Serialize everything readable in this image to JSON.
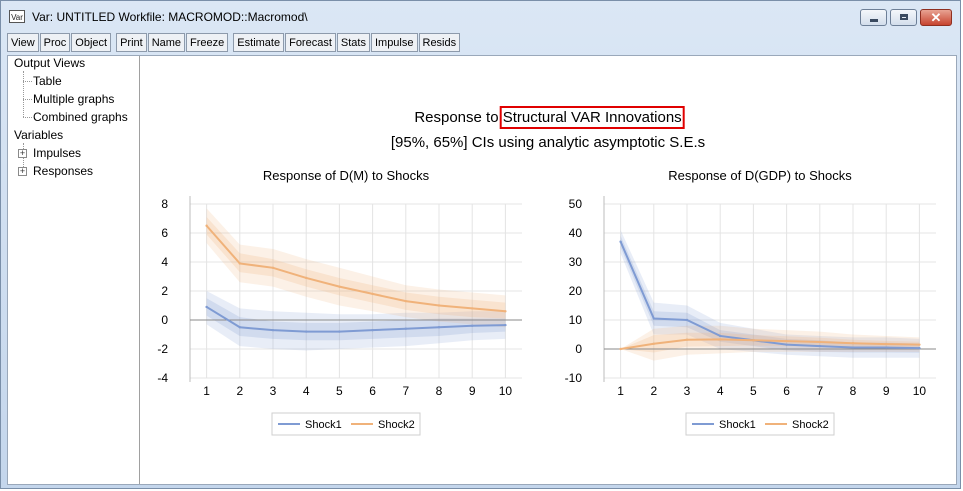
{
  "window": {
    "icon_label": "Var",
    "title": "Var: UNTITLED   Workfile: MACROMOD::Macromod\\"
  },
  "toolbar": {
    "groups": [
      [
        "View",
        "Proc",
        "Object"
      ],
      [
        "Print",
        "Name",
        "Freeze"
      ],
      [
        "Estimate",
        "Forecast",
        "Stats",
        "Impulse",
        "Resids"
      ]
    ]
  },
  "tree": {
    "output_views": "Output Views",
    "table": "Table",
    "multiple_graphs": "Multiple graphs",
    "combined_graphs": "Combined graphs",
    "variables": "Variables",
    "impulses": "Impulses",
    "responses": "Responses"
  },
  "figure": {
    "title_prefix": "Response to ",
    "title_highlight": "Structural VAR Innovations",
    "highlight_color": "#e00000",
    "subtitle": "[95%, 65%] CIs using analytic asymptotic S.E.s"
  },
  "colors": {
    "shock1": "#7f9bd3",
    "shock2": "#f0b27a"
  },
  "chart_data": [
    {
      "type": "line",
      "title": "Response of D(M) to Shocks",
      "x": [
        1,
        2,
        3,
        4,
        5,
        6,
        7,
        8,
        9,
        10
      ],
      "ylim": [
        -4,
        8
      ],
      "yticks": [
        -4,
        -2,
        0,
        2,
        4,
        6,
        8
      ],
      "grid": true,
      "legend": "bottom-center",
      "series": [
        {
          "name": "Shock1",
          "values": [
            0.9,
            -0.5,
            -0.7,
            -0.8,
            -0.8,
            -0.7,
            -0.6,
            -0.5,
            -0.4,
            -0.35
          ],
          "band95": [
            [
              -0.3,
              2.0
            ],
            [
              -1.8,
              0.8
            ],
            [
              -2.0,
              0.6
            ],
            [
              -2.1,
              0.5
            ],
            [
              -2.0,
              0.4
            ],
            [
              -1.9,
              0.4
            ],
            [
              -1.8,
              0.5
            ],
            [
              -1.6,
              0.5
            ],
            [
              -1.4,
              0.6
            ],
            [
              -1.3,
              0.6
            ]
          ],
          "band65": [
            [
              0.3,
              1.5
            ],
            [
              -1.1,
              0.2
            ],
            [
              -1.3,
              -0.1
            ],
            [
              -1.4,
              -0.2
            ],
            [
              -1.4,
              -0.2
            ],
            [
              -1.3,
              -0.1
            ],
            [
              -1.2,
              0.0
            ],
            [
              -1.1,
              0.1
            ],
            [
              -0.9,
              0.1
            ],
            [
              -0.8,
              0.1
            ]
          ]
        },
        {
          "name": "Shock2",
          "values": [
            6.5,
            3.9,
            3.6,
            2.9,
            2.3,
            1.8,
            1.3,
            1.0,
            0.8,
            0.6
          ],
          "band95": [
            [
              5.3,
              7.7
            ],
            [
              2.6,
              5.2
            ],
            [
              2.3,
              4.9
            ],
            [
              1.6,
              4.2
            ],
            [
              1.0,
              3.6
            ],
            [
              0.6,
              3.0
            ],
            [
              0.2,
              2.4
            ],
            [
              -0.1,
              2.1
            ],
            [
              -0.3,
              1.9
            ],
            [
              -0.5,
              1.7
            ]
          ],
          "band65": [
            [
              5.9,
              7.1
            ],
            [
              3.3,
              4.6
            ],
            [
              3.0,
              4.2
            ],
            [
              2.3,
              3.5
            ],
            [
              1.7,
              2.9
            ],
            [
              1.2,
              2.4
            ],
            [
              0.7,
              1.9
            ],
            [
              0.4,
              1.6
            ],
            [
              0.2,
              1.4
            ],
            [
              0.1,
              1.2
            ]
          ]
        }
      ]
    },
    {
      "type": "line",
      "title": "Response of D(GDP) to Shocks",
      "x": [
        1,
        2,
        3,
        4,
        5,
        6,
        7,
        8,
        9,
        10
      ],
      "ylim": [
        -10,
        50
      ],
      "yticks": [
        -10,
        0,
        10,
        20,
        30,
        40,
        50
      ],
      "grid": true,
      "legend": "bottom-center",
      "series": [
        {
          "name": "Shock1",
          "values": [
            37,
            10.5,
            10,
            4.5,
            3,
            1.5,
            1,
            0.5,
            0.5,
            0.3
          ],
          "band95": [
            [
              33,
              41
            ],
            [
              5,
              16
            ],
            [
              5,
              15
            ],
            [
              0,
              9
            ],
            [
              -1,
              7
            ],
            [
              -2,
              5
            ],
            [
              -2.5,
              4.5
            ],
            [
              -3,
              4
            ],
            [
              -3,
              4
            ],
            [
              -3,
              3.5
            ]
          ],
          "band65": [
            [
              35,
              39
            ],
            [
              8,
              13
            ],
            [
              7.5,
              12.5
            ],
            [
              2.5,
              6.5
            ],
            [
              1,
              5
            ],
            [
              -0.5,
              3.5
            ],
            [
              -1,
              3
            ],
            [
              -1.2,
              2.2
            ],
            [
              -1.2,
              2.2
            ],
            [
              -1.3,
              1.9
            ]
          ]
        },
        {
          "name": "Shock2",
          "values": [
            0,
            1.8,
            3.2,
            3.3,
            3.0,
            2.7,
            2.4,
            2.0,
            1.7,
            1.5
          ],
          "band95": [
            [
              0,
              0
            ],
            [
              -4,
              7
            ],
            [
              -2,
              8
            ],
            [
              -1.5,
              8
            ],
            [
              -1,
              7
            ],
            [
              -1,
              6.5
            ],
            [
              -1,
              6
            ],
            [
              -1,
              5
            ],
            [
              -1,
              4.5
            ],
            [
              -1,
              4
            ]
          ],
          "band65": [
            [
              0,
              0
            ],
            [
              -1.2,
              4.8
            ],
            [
              0.8,
              5.6
            ],
            [
              1.0,
              5.6
            ],
            [
              1.2,
              4.8
            ],
            [
              1.0,
              4.4
            ],
            [
              0.9,
              3.9
            ],
            [
              0.8,
              3.2
            ],
            [
              0.6,
              2.8
            ],
            [
              0.5,
              2.5
            ]
          ]
        }
      ]
    }
  ]
}
